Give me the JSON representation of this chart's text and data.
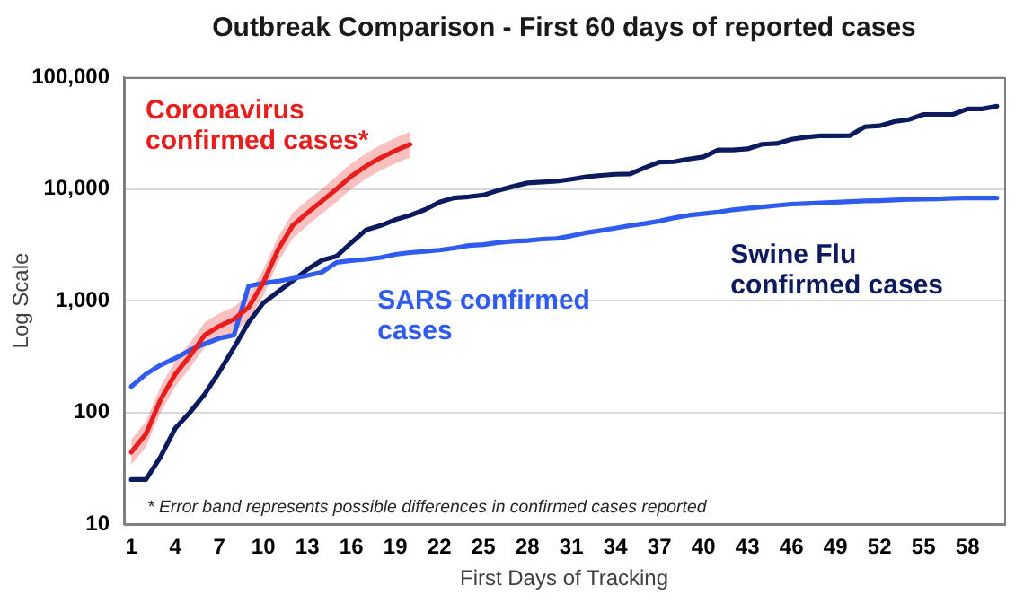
{
  "chart_data": {
    "type": "line",
    "title": "Outbreak Comparison - First 60 days of reported cases",
    "xlabel": "First Days of Tracking",
    "ylabel": "Log Scale",
    "categories": [
      "1",
      null,
      null,
      "4",
      null,
      null,
      "7",
      null,
      null,
      "10",
      null,
      null,
      "13",
      null,
      null,
      "16",
      null,
      null,
      "19",
      null,
      null,
      "22",
      null,
      null,
      "25",
      null,
      null,
      "28",
      null,
      null,
      "31",
      null,
      null,
      "34",
      null,
      null,
      "37",
      null,
      null,
      "40",
      null,
      null,
      "43",
      null,
      null,
      "46",
      null,
      null,
      "49",
      null,
      null,
      "52",
      null,
      null,
      "55",
      null,
      null,
      "58",
      null,
      null
    ],
    "series": [
      {
        "name": "Coronavirus confirmed cases*",
        "color": "#e81e1e",
        "values": [
          44,
          64,
          130,
          220,
          320,
          490,
          590,
          680,
          870,
          1450,
          2850,
          4700,
          6100,
          7800,
          10000,
          13000,
          16000,
          19000,
          22000,
          25000,
          null,
          null,
          null,
          null,
          null,
          null,
          null,
          null,
          null,
          null,
          null,
          null,
          null,
          null,
          null,
          null,
          null,
          null,
          null,
          null,
          null,
          null,
          null,
          null,
          null,
          null,
          null,
          null,
          null,
          null,
          null,
          null,
          null,
          null,
          null,
          null,
          null,
          null,
          null,
          null
        ],
        "lower": [
          34,
          49,
          100,
          170,
          250,
          380,
          450,
          520,
          670,
          1100,
          2200,
          3600,
          4700,
          6000,
          7700,
          10000,
          12300,
          14600,
          16900,
          19200,
          null,
          null,
          null,
          null,
          null,
          null,
          null,
          null,
          null,
          null,
          null,
          null,
          null,
          null,
          null,
          null,
          null,
          null,
          null,
          null,
          null,
          null,
          null,
          null,
          null,
          null,
          null,
          null,
          null,
          null,
          null,
          null,
          null,
          null,
          null,
          null,
          null,
          null,
          null,
          null
        ],
        "upper": [
          57,
          83,
          170,
          290,
          420,
          640,
          770,
          880,
          1130,
          1900,
          3700,
          6100,
          7900,
          10000,
          13000,
          16900,
          20800,
          24700,
          28600,
          32500,
          null,
          null,
          null,
          null,
          null,
          null,
          null,
          null,
          null,
          null,
          null,
          null,
          null,
          null,
          null,
          null,
          null,
          null,
          null,
          null,
          null,
          null,
          null,
          null,
          null,
          null,
          null,
          null,
          null,
          null,
          null,
          null,
          null,
          null,
          null,
          null,
          null,
          null,
          null,
          null
        ]
      },
      {
        "name": "SARS confirmed cases",
        "color": "#2f5bee",
        "values": [
          170,
          220,
          265,
          305,
          360,
          410,
          460,
          490,
          1350,
          1430,
          1490,
          1580,
          1680,
          1800,
          2200,
          2280,
          2340,
          2430,
          2590,
          2690,
          2760,
          2830,
          2950,
          3110,
          3170,
          3300,
          3400,
          3450,
          3550,
          3600,
          3800,
          4050,
          4240,
          4450,
          4700,
          4900,
          5150,
          5500,
          5800,
          6000,
          6200,
          6500,
          6700,
          6900,
          7100,
          7300,
          7400,
          7500,
          7600,
          7700,
          7800,
          7850,
          7950,
          8050,
          8100,
          8150,
          8250,
          8300,
          8300,
          8300
        ]
      },
      {
        "name": "Swine Flu confirmed cases",
        "color": "#0d1b5e",
        "values": [
          25,
          25,
          40,
          72,
          100,
          145,
          230,
          380,
          640,
          950,
          1200,
          1500,
          1900,
          2300,
          2500,
          3300,
          4300,
          4700,
          5300,
          5800,
          6500,
          7600,
          8300,
          8500,
          8800,
          9700,
          10500,
          11300,
          11500,
          11700,
          12200,
          12800,
          13200,
          13500,
          13600,
          15500,
          17400,
          17500,
          18500,
          19300,
          22300,
          22300,
          22800,
          25100,
          25500,
          27800,
          29000,
          29900,
          29900,
          30000,
          36000,
          36700,
          40000,
          41700,
          46400,
          46400,
          46400,
          52000,
          52000,
          55000
        ]
      }
    ],
    "ylim": [
      10,
      100000
    ],
    "yticks": [
      10,
      100,
      {
        "value": 1000,
        "label": "1,000"
      },
      {
        "value": 10000,
        "label": "10,000"
      },
      {
        "value": 100000,
        "label": "100,000"
      }
    ],
    "log": "y",
    "grid": "y",
    "legend": false,
    "marker": "none",
    "line_style": "solid",
    "annotations": [
      "* Error band represents possible differences in confirmed cases reported"
    ]
  }
}
